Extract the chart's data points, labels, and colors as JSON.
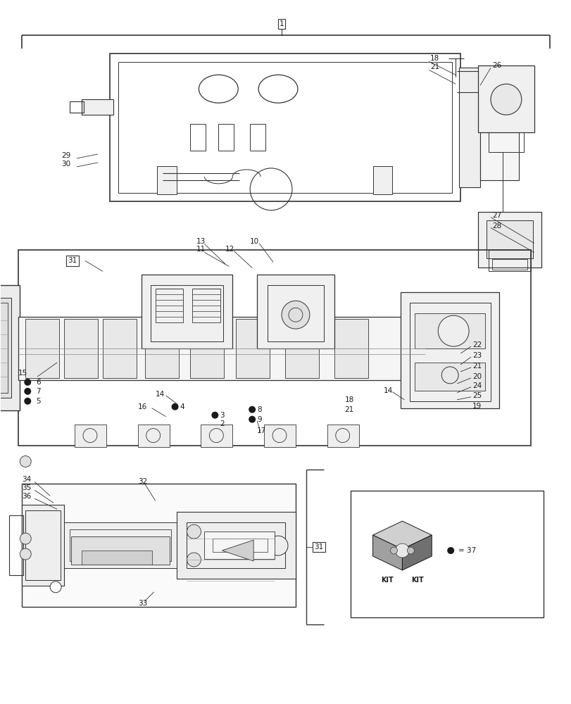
{
  "bg_color": "#ffffff",
  "lc": "#333333",
  "lc_dark": "#1a1a1a",
  "fig_width": 8.12,
  "fig_height": 10.0,
  "dpi": 100,
  "fs": 7.5,
  "fs_small": 6.5
}
